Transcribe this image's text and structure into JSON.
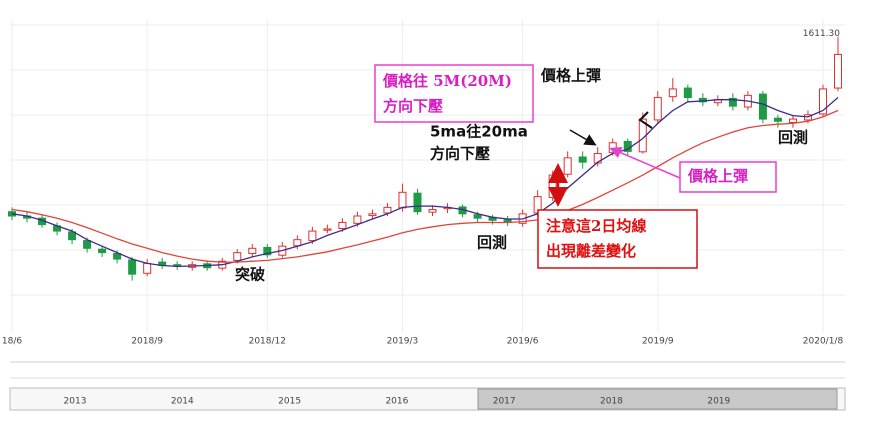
{
  "chart_data": {
    "type": "candlestick",
    "categories": [
      "18/6",
      null,
      null,
      null,
      null,
      null,
      null,
      null,
      null,
      "2018/9",
      null,
      null,
      null,
      null,
      null,
      null,
      null,
      "2018/12",
      null,
      null,
      null,
      null,
      null,
      null,
      null,
      null,
      "2019/3",
      null,
      null,
      null,
      null,
      null,
      null,
      null,
      "2019/6",
      null,
      null,
      null,
      null,
      null,
      null,
      null,
      null,
      "2019/9",
      null,
      null,
      null,
      null,
      null,
      null,
      null,
      null,
      null,
      null,
      "2020/1/8",
      null
    ],
    "open": [
      1205,
      1195,
      1190,
      1172,
      1158,
      1138,
      1118,
      1108,
      1093,
      1062,
      1088,
      1082,
      1076,
      1084,
      1074,
      1092,
      1108,
      1122,
      1104,
      1126,
      1138,
      1162,
      1166,
      1178,
      1196,
      1202,
      1214,
      1248,
      1204,
      1212,
      1216,
      1198,
      1192,
      1186,
      1178,
      1202,
      1238,
      1292,
      1332,
      1318,
      1342,
      1368,
      1344,
      1418,
      1472,
      1492,
      1468,
      1458,
      1468,
      1448,
      1478,
      1422,
      1412,
      1418,
      1432,
      1492
    ],
    "high": [
      1215,
      1205,
      1198,
      1180,
      1165,
      1145,
      1125,
      1115,
      1100,
      1095,
      1098,
      1090,
      1090,
      1092,
      1098,
      1118,
      1130,
      1130,
      1135,
      1150,
      1170,
      1175,
      1190,
      1205,
      1210,
      1225,
      1270,
      1258,
      1220,
      1225,
      1222,
      1205,
      1198,
      1195,
      1210,
      1255,
      1300,
      1345,
      1345,
      1355,
      1375,
      1375,
      1435,
      1485,
      1515,
      1500,
      1480,
      1475,
      1480,
      1485,
      1485,
      1430,
      1428,
      1440,
      1500,
      1611.3
    ],
    "low": [
      1185,
      1180,
      1168,
      1150,
      1130,
      1110,
      1100,
      1085,
      1045,
      1055,
      1072,
      1070,
      1068,
      1068,
      1068,
      1085,
      1100,
      1098,
      1098,
      1118,
      1130,
      1155,
      1158,
      1170,
      1188,
      1195,
      1205,
      1198,
      1195,
      1202,
      1192,
      1180,
      1175,
      1172,
      1170,
      1195,
      1230,
      1285,
      1305,
      1310,
      1335,
      1335,
      1340,
      1410,
      1460,
      1460,
      1450,
      1450,
      1440,
      1440,
      1410,
      1400,
      1400,
      1410,
      1425,
      1485
    ],
    "close": [
      1195,
      1190,
      1175,
      1160,
      1140,
      1120,
      1110,
      1095,
      1060,
      1085,
      1080,
      1078,
      1082,
      1075,
      1090,
      1110,
      1120,
      1105,
      1125,
      1140,
      1160,
      1165,
      1180,
      1195,
      1200,
      1215,
      1250,
      1205,
      1210,
      1215,
      1200,
      1190,
      1185,
      1180,
      1200,
      1240,
      1290,
      1330,
      1320,
      1340,
      1365,
      1345,
      1420,
      1470,
      1490,
      1470,
      1460,
      1465,
      1450,
      1475,
      1420,
      1415,
      1420,
      1430,
      1490,
      1570
    ],
    "up_color": "#e03030",
    "down_color": "#1f9a45",
    "ma_lines": [
      {
        "color": "#3a2c8c",
        "values": [
          1200,
          1195,
          1185,
          1172,
          1160,
          1140,
          1125,
          1110,
          1095,
          1085,
          1080,
          1078,
          1079,
          1080,
          1082,
          1090,
          1100,
          1108,
          1115,
          1125,
          1135,
          1150,
          1162,
          1175,
          1188,
          1200,
          1215,
          1218,
          1218,
          1215,
          1210,
          1200,
          1192,
          1188,
          1188,
          1200,
          1225,
          1260,
          1290,
          1320,
          1340,
          1350,
          1375,
          1410,
          1440,
          1460,
          1462,
          1465,
          1465,
          1462,
          1455,
          1440,
          1428,
          1425,
          1440,
          1470
        ]
      },
      {
        "color": "#e0453a",
        "values": [
          1210,
          1205,
          1198,
          1190,
          1180,
          1168,
          1155,
          1142,
          1130,
          1120,
          1110,
          1102,
          1095,
          1090,
          1088,
          1088,
          1090,
          1092,
          1096,
          1100,
          1106,
          1112,
          1120,
          1128,
          1137,
          1146,
          1156,
          1164,
          1170,
          1175,
          1178,
          1180,
          1180,
          1180,
          1182,
          1186,
          1195,
          1208,
          1222,
          1238,
          1255,
          1272,
          1290,
          1310,
          1330,
          1348,
          1365,
          1378,
          1390,
          1400,
          1405,
          1408,
          1410,
          1415,
          1425,
          1440
        ]
      }
    ],
    "ylim": [
      1000,
      1650
    ],
    "grid": true,
    "max_label": "1611.30",
    "annotations": [
      {
        "lines": [
          "價格往 5M(20M)",
          "方向下壓"
        ]
      },
      {
        "lines": [
          "價格上彈"
        ]
      },
      {
        "lines": [
          "5ma往20ma",
          "方向下壓"
        ]
      },
      {
        "lines": [
          "價格上彈"
        ]
      },
      {
        "lines": [
          "注意這2日均線",
          "出現離差變化"
        ]
      },
      {
        "lines": [
          "回測"
        ]
      },
      {
        "lines": [
          "回測"
        ]
      },
      {
        "lines": [
          "突破"
        ]
      }
    ]
  },
  "navigator": {
    "labels": [
      "2013",
      "2014",
      "2015",
      "2016",
      "2017",
      "2018",
      "2019"
    ]
  }
}
